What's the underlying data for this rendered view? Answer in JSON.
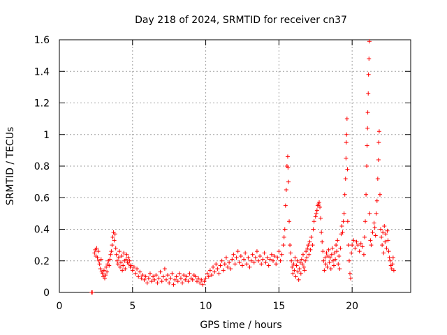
{
  "chart_data": {
    "type": "scatter",
    "title": "Day 218 of 2024, SRMTID for receiver cn37",
    "xlabel": "GPS time / hours",
    "ylabel": "SRMTID / TECUs",
    "xlim": [
      0,
      24
    ],
    "ylim": [
      0,
      1.6
    ],
    "x_ticks": [
      0,
      5,
      10,
      15,
      20
    ],
    "x_tick_labels": [
      "0",
      "5",
      "10",
      "15",
      "20"
    ],
    "y_ticks": [
      0,
      0.2,
      0.4,
      0.6,
      0.8,
      1.0,
      1.2,
      1.4,
      1.6
    ],
    "y_tick_labels": [
      "0",
      "0.2",
      "0.4",
      "0.6",
      "0.8",
      "1",
      "1.2",
      "1.4",
      "1.6"
    ],
    "grid": true,
    "marker": "+",
    "color": "#ff0000",
    "series": [
      {
        "name": "SRMTID",
        "points": [
          [
            2.2,
            0.0
          ],
          [
            2.25,
            0.0
          ],
          [
            2.4,
            0.25
          ],
          [
            2.45,
            0.27
          ],
          [
            2.5,
            0.23
          ],
          [
            2.55,
            0.28
          ],
          [
            2.6,
            0.22
          ],
          [
            2.65,
            0.26
          ],
          [
            2.7,
            0.2
          ],
          [
            2.75,
            0.18
          ],
          [
            2.8,
            0.15
          ],
          [
            2.85,
            0.21
          ],
          [
            2.9,
            0.13
          ],
          [
            2.95,
            0.12
          ],
          [
            3.0,
            0.1
          ],
          [
            3.05,
            0.14
          ],
          [
            3.1,
            0.09
          ],
          [
            3.15,
            0.11
          ],
          [
            3.2,
            0.16
          ],
          [
            3.25,
            0.13
          ],
          [
            3.3,
            0.18
          ],
          [
            3.35,
            0.2
          ],
          [
            3.4,
            0.17
          ],
          [
            3.45,
            0.21
          ],
          [
            3.5,
            0.24
          ],
          [
            3.55,
            0.26
          ],
          [
            3.6,
            0.3
          ],
          [
            3.65,
            0.35
          ],
          [
            3.7,
            0.38
          ],
          [
            3.75,
            0.33
          ],
          [
            3.8,
            0.37
          ],
          [
            3.85,
            0.28
          ],
          [
            3.9,
            0.24
          ],
          [
            3.95,
            0.2
          ],
          [
            4.0,
            0.18
          ],
          [
            4.05,
            0.22
          ],
          [
            4.1,
            0.26
          ],
          [
            4.15,
            0.16
          ],
          [
            4.2,
            0.19
          ],
          [
            4.25,
            0.23
          ],
          [
            4.3,
            0.14
          ],
          [
            4.35,
            0.17
          ],
          [
            4.4,
            0.25
          ],
          [
            4.45,
            0.2
          ],
          [
            4.5,
            0.15
          ],
          [
            4.55,
            0.21
          ],
          [
            4.6,
            0.24
          ],
          [
            4.65,
            0.19
          ],
          [
            4.7,
            0.22
          ],
          [
            4.75,
            0.18
          ],
          [
            4.8,
            0.2
          ],
          [
            4.85,
            0.16
          ],
          [
            4.9,
            0.17
          ],
          [
            5.0,
            0.14
          ],
          [
            5.1,
            0.16
          ],
          [
            5.2,
            0.12
          ],
          [
            5.3,
            0.15
          ],
          [
            5.4,
            0.1
          ],
          [
            5.5,
            0.13
          ],
          [
            5.6,
            0.09
          ],
          [
            5.7,
            0.11
          ],
          [
            5.8,
            0.08
          ],
          [
            5.9,
            0.1
          ],
          [
            6.0,
            0.06
          ],
          [
            6.1,
            0.09
          ],
          [
            6.2,
            0.12
          ],
          [
            6.3,
            0.07
          ],
          [
            6.4,
            0.1
          ],
          [
            6.5,
            0.08
          ],
          [
            6.6,
            0.11
          ],
          [
            6.7,
            0.06
          ],
          [
            6.8,
            0.09
          ],
          [
            6.9,
            0.13
          ],
          [
            7.0,
            0.07
          ],
          [
            7.1,
            0.1
          ],
          [
            7.2,
            0.15
          ],
          [
            7.3,
            0.08
          ],
          [
            7.4,
            0.11
          ],
          [
            7.5,
            0.06
          ],
          [
            7.6,
            0.09
          ],
          [
            7.7,
            0.12
          ],
          [
            7.8,
            0.05
          ],
          [
            7.9,
            0.08
          ],
          [
            8.0,
            0.1
          ],
          [
            8.1,
            0.07
          ],
          [
            8.2,
            0.12
          ],
          [
            8.3,
            0.09
          ],
          [
            8.4,
            0.06
          ],
          [
            8.5,
            0.11
          ],
          [
            8.6,
            0.08
          ],
          [
            8.7,
            0.1
          ],
          [
            8.8,
            0.07
          ],
          [
            8.9,
            0.12
          ],
          [
            9.0,
            0.09
          ],
          [
            9.1,
            0.08
          ],
          [
            9.2,
            0.11
          ],
          [
            9.3,
            0.1
          ],
          [
            9.4,
            0.07
          ],
          [
            9.5,
            0.09
          ],
          [
            9.6,
            0.06
          ],
          [
            9.7,
            0.08
          ],
          [
            9.8,
            0.05
          ],
          [
            9.9,
            0.07
          ],
          [
            10.0,
            0.09
          ],
          [
            10.1,
            0.12
          ],
          [
            10.2,
            0.1
          ],
          [
            10.3,
            0.14
          ],
          [
            10.4,
            0.11
          ],
          [
            10.5,
            0.16
          ],
          [
            10.6,
            0.13
          ],
          [
            10.7,
            0.18
          ],
          [
            10.8,
            0.15
          ],
          [
            10.9,
            0.12
          ],
          [
            11.0,
            0.17
          ],
          [
            11.1,
            0.2
          ],
          [
            11.2,
            0.14
          ],
          [
            11.3,
            0.18
          ],
          [
            11.4,
            0.22
          ],
          [
            11.5,
            0.16
          ],
          [
            11.6,
            0.19
          ],
          [
            11.7,
            0.15
          ],
          [
            11.8,
            0.21
          ],
          [
            11.9,
            0.24
          ],
          [
            12.0,
            0.18
          ],
          [
            12.1,
            0.22
          ],
          [
            12.2,
            0.26
          ],
          [
            12.3,
            0.19
          ],
          [
            12.4,
            0.23
          ],
          [
            12.5,
            0.17
          ],
          [
            12.6,
            0.21
          ],
          [
            12.7,
            0.25
          ],
          [
            12.8,
            0.18
          ],
          [
            12.9,
            0.22
          ],
          [
            13.0,
            0.16
          ],
          [
            13.1,
            0.2
          ],
          [
            13.2,
            0.24
          ],
          [
            13.3,
            0.19
          ],
          [
            13.4,
            0.22
          ],
          [
            13.5,
            0.26
          ],
          [
            13.6,
            0.2
          ],
          [
            13.7,
            0.23
          ],
          [
            13.8,
            0.18
          ],
          [
            13.9,
            0.21
          ],
          [
            14.0,
            0.25
          ],
          [
            14.1,
            0.19
          ],
          [
            14.2,
            0.22
          ],
          [
            14.3,
            0.17
          ],
          [
            14.4,
            0.21
          ],
          [
            14.5,
            0.24
          ],
          [
            14.6,
            0.2
          ],
          [
            14.7,
            0.23
          ],
          [
            14.8,
            0.18
          ],
          [
            14.9,
            0.22
          ],
          [
            15.0,
            0.26
          ],
          [
            15.1,
            0.2
          ],
          [
            15.2,
            0.24
          ],
          [
            15.3,
            0.3
          ],
          [
            15.35,
            0.35
          ],
          [
            15.4,
            0.4
          ],
          [
            15.45,
            0.55
          ],
          [
            15.5,
            0.65
          ],
          [
            15.55,
            0.8
          ],
          [
            15.6,
            0.86
          ],
          [
            15.62,
            0.79
          ],
          [
            15.65,
            0.7
          ],
          [
            15.7,
            0.45
          ],
          [
            15.75,
            0.3
          ],
          [
            15.8,
            0.25
          ],
          [
            15.85,
            0.2
          ],
          [
            15.9,
            0.16
          ],
          [
            15.95,
            0.12
          ],
          [
            16.0,
            0.18
          ],
          [
            16.05,
            0.14
          ],
          [
            16.1,
            0.22
          ],
          [
            16.15,
            0.1
          ],
          [
            16.2,
            0.17
          ],
          [
            16.25,
            0.2
          ],
          [
            16.3,
            0.13
          ],
          [
            16.35,
            0.08
          ],
          [
            16.4,
            0.15
          ],
          [
            16.45,
            0.19
          ],
          [
            16.5,
            0.12
          ],
          [
            16.55,
            0.21
          ],
          [
            16.6,
            0.18
          ],
          [
            16.65,
            0.24
          ],
          [
            16.7,
            0.16
          ],
          [
            16.75,
            0.14
          ],
          [
            16.8,
            0.2
          ],
          [
            16.85,
            0.26
          ],
          [
            16.9,
            0.22
          ],
          [
            16.95,
            0.28
          ],
          [
            17.0,
            0.3
          ],
          [
            17.05,
            0.24
          ],
          [
            17.1,
            0.32
          ],
          [
            17.15,
            0.27
          ],
          [
            17.2,
            0.35
          ],
          [
            17.3,
            0.3
          ],
          [
            17.35,
            0.4
          ],
          [
            17.4,
            0.45
          ],
          [
            17.5,
            0.48
          ],
          [
            17.55,
            0.5
          ],
          [
            17.6,
            0.52
          ],
          [
            17.65,
            0.55
          ],
          [
            17.7,
            0.56
          ],
          [
            17.75,
            0.57
          ],
          [
            17.8,
            0.54
          ],
          [
            17.85,
            0.47
          ],
          [
            17.9,
            0.38
          ],
          [
            17.95,
            0.32
          ],
          [
            18.0,
            0.26
          ],
          [
            18.05,
            0.2
          ],
          [
            18.1,
            0.14
          ],
          [
            18.15,
            0.22
          ],
          [
            18.2,
            0.18
          ],
          [
            18.25,
            0.25
          ],
          [
            18.3,
            0.16
          ],
          [
            18.35,
            0.23
          ],
          [
            18.4,
            0.27
          ],
          [
            18.45,
            0.19
          ],
          [
            18.5,
            0.22
          ],
          [
            18.55,
            0.15
          ],
          [
            18.6,
            0.24
          ],
          [
            18.65,
            0.28
          ],
          [
            18.7,
            0.2
          ],
          [
            18.75,
            0.17
          ],
          [
            18.8,
            0.25
          ],
          [
            18.85,
            0.21
          ],
          [
            18.9,
            0.3
          ],
          [
            18.95,
            0.26
          ],
          [
            19.0,
            0.33
          ],
          [
            19.05,
            0.18
          ],
          [
            19.1,
            0.23
          ],
          [
            19.15,
            0.15
          ],
          [
            19.2,
            0.28
          ],
          [
            19.25,
            0.37
          ],
          [
            19.3,
            0.42
          ],
          [
            19.35,
            0.38
          ],
          [
            19.4,
            0.45
          ],
          [
            19.45,
            0.5
          ],
          [
            19.5,
            0.62
          ],
          [
            19.55,
            0.72
          ],
          [
            19.58,
            0.85
          ],
          [
            19.6,
            0.95
          ],
          [
            19.62,
            1.0
          ],
          [
            19.65,
            1.1
          ],
          [
            19.68,
            0.78
          ],
          [
            19.7,
            0.45
          ],
          [
            19.75,
            0.3
          ],
          [
            19.8,
            0.2
          ],
          [
            19.85,
            0.12
          ],
          [
            19.9,
            0.09
          ],
          [
            19.95,
            0.25
          ],
          [
            20.0,
            0.3
          ],
          [
            20.1,
            0.33
          ],
          [
            20.2,
            0.28
          ],
          [
            20.3,
            0.32
          ],
          [
            20.4,
            0.3
          ],
          [
            20.5,
            0.26
          ],
          [
            20.6,
            0.31
          ],
          [
            20.7,
            0.29
          ],
          [
            20.8,
            0.24
          ],
          [
            20.85,
            0.35
          ],
          [
            20.9,
            0.45
          ],
          [
            20.95,
            0.62
          ],
          [
            21.0,
            0.8
          ],
          [
            21.02,
            0.93
          ],
          [
            21.05,
            1.04
          ],
          [
            21.07,
            1.14
          ],
          [
            21.1,
            1.26
          ],
          [
            21.12,
            1.38
          ],
          [
            21.15,
            1.48
          ],
          [
            21.18,
            1.59
          ],
          [
            21.2,
            0.5
          ],
          [
            21.25,
            0.33
          ],
          [
            21.3,
            0.3
          ],
          [
            21.4,
            0.38
          ],
          [
            21.5,
            0.44
          ],
          [
            21.55,
            0.41
          ],
          [
            21.6,
            0.36
          ],
          [
            21.65,
            0.5
          ],
          [
            21.7,
            0.58
          ],
          [
            21.75,
            0.72
          ],
          [
            21.8,
            0.84
          ],
          [
            21.82,
            0.95
          ],
          [
            21.85,
            1.02
          ],
          [
            21.9,
            0.62
          ],
          [
            21.95,
            0.4
          ],
          [
            22.0,
            0.35
          ],
          [
            22.05,
            0.3
          ],
          [
            22.1,
            0.38
          ],
          [
            22.15,
            0.25
          ],
          [
            22.2,
            0.42
          ],
          [
            22.25,
            0.32
          ],
          [
            22.3,
            0.37
          ],
          [
            22.35,
            0.28
          ],
          [
            22.4,
            0.39
          ],
          [
            22.45,
            0.33
          ],
          [
            22.5,
            0.26
          ],
          [
            22.55,
            0.22
          ],
          [
            22.6,
            0.2
          ],
          [
            22.65,
            0.17
          ],
          [
            22.7,
            0.15
          ],
          [
            22.75,
            0.18
          ],
          [
            22.8,
            0.22
          ],
          [
            22.85,
            0.14
          ]
        ]
      }
    ]
  }
}
